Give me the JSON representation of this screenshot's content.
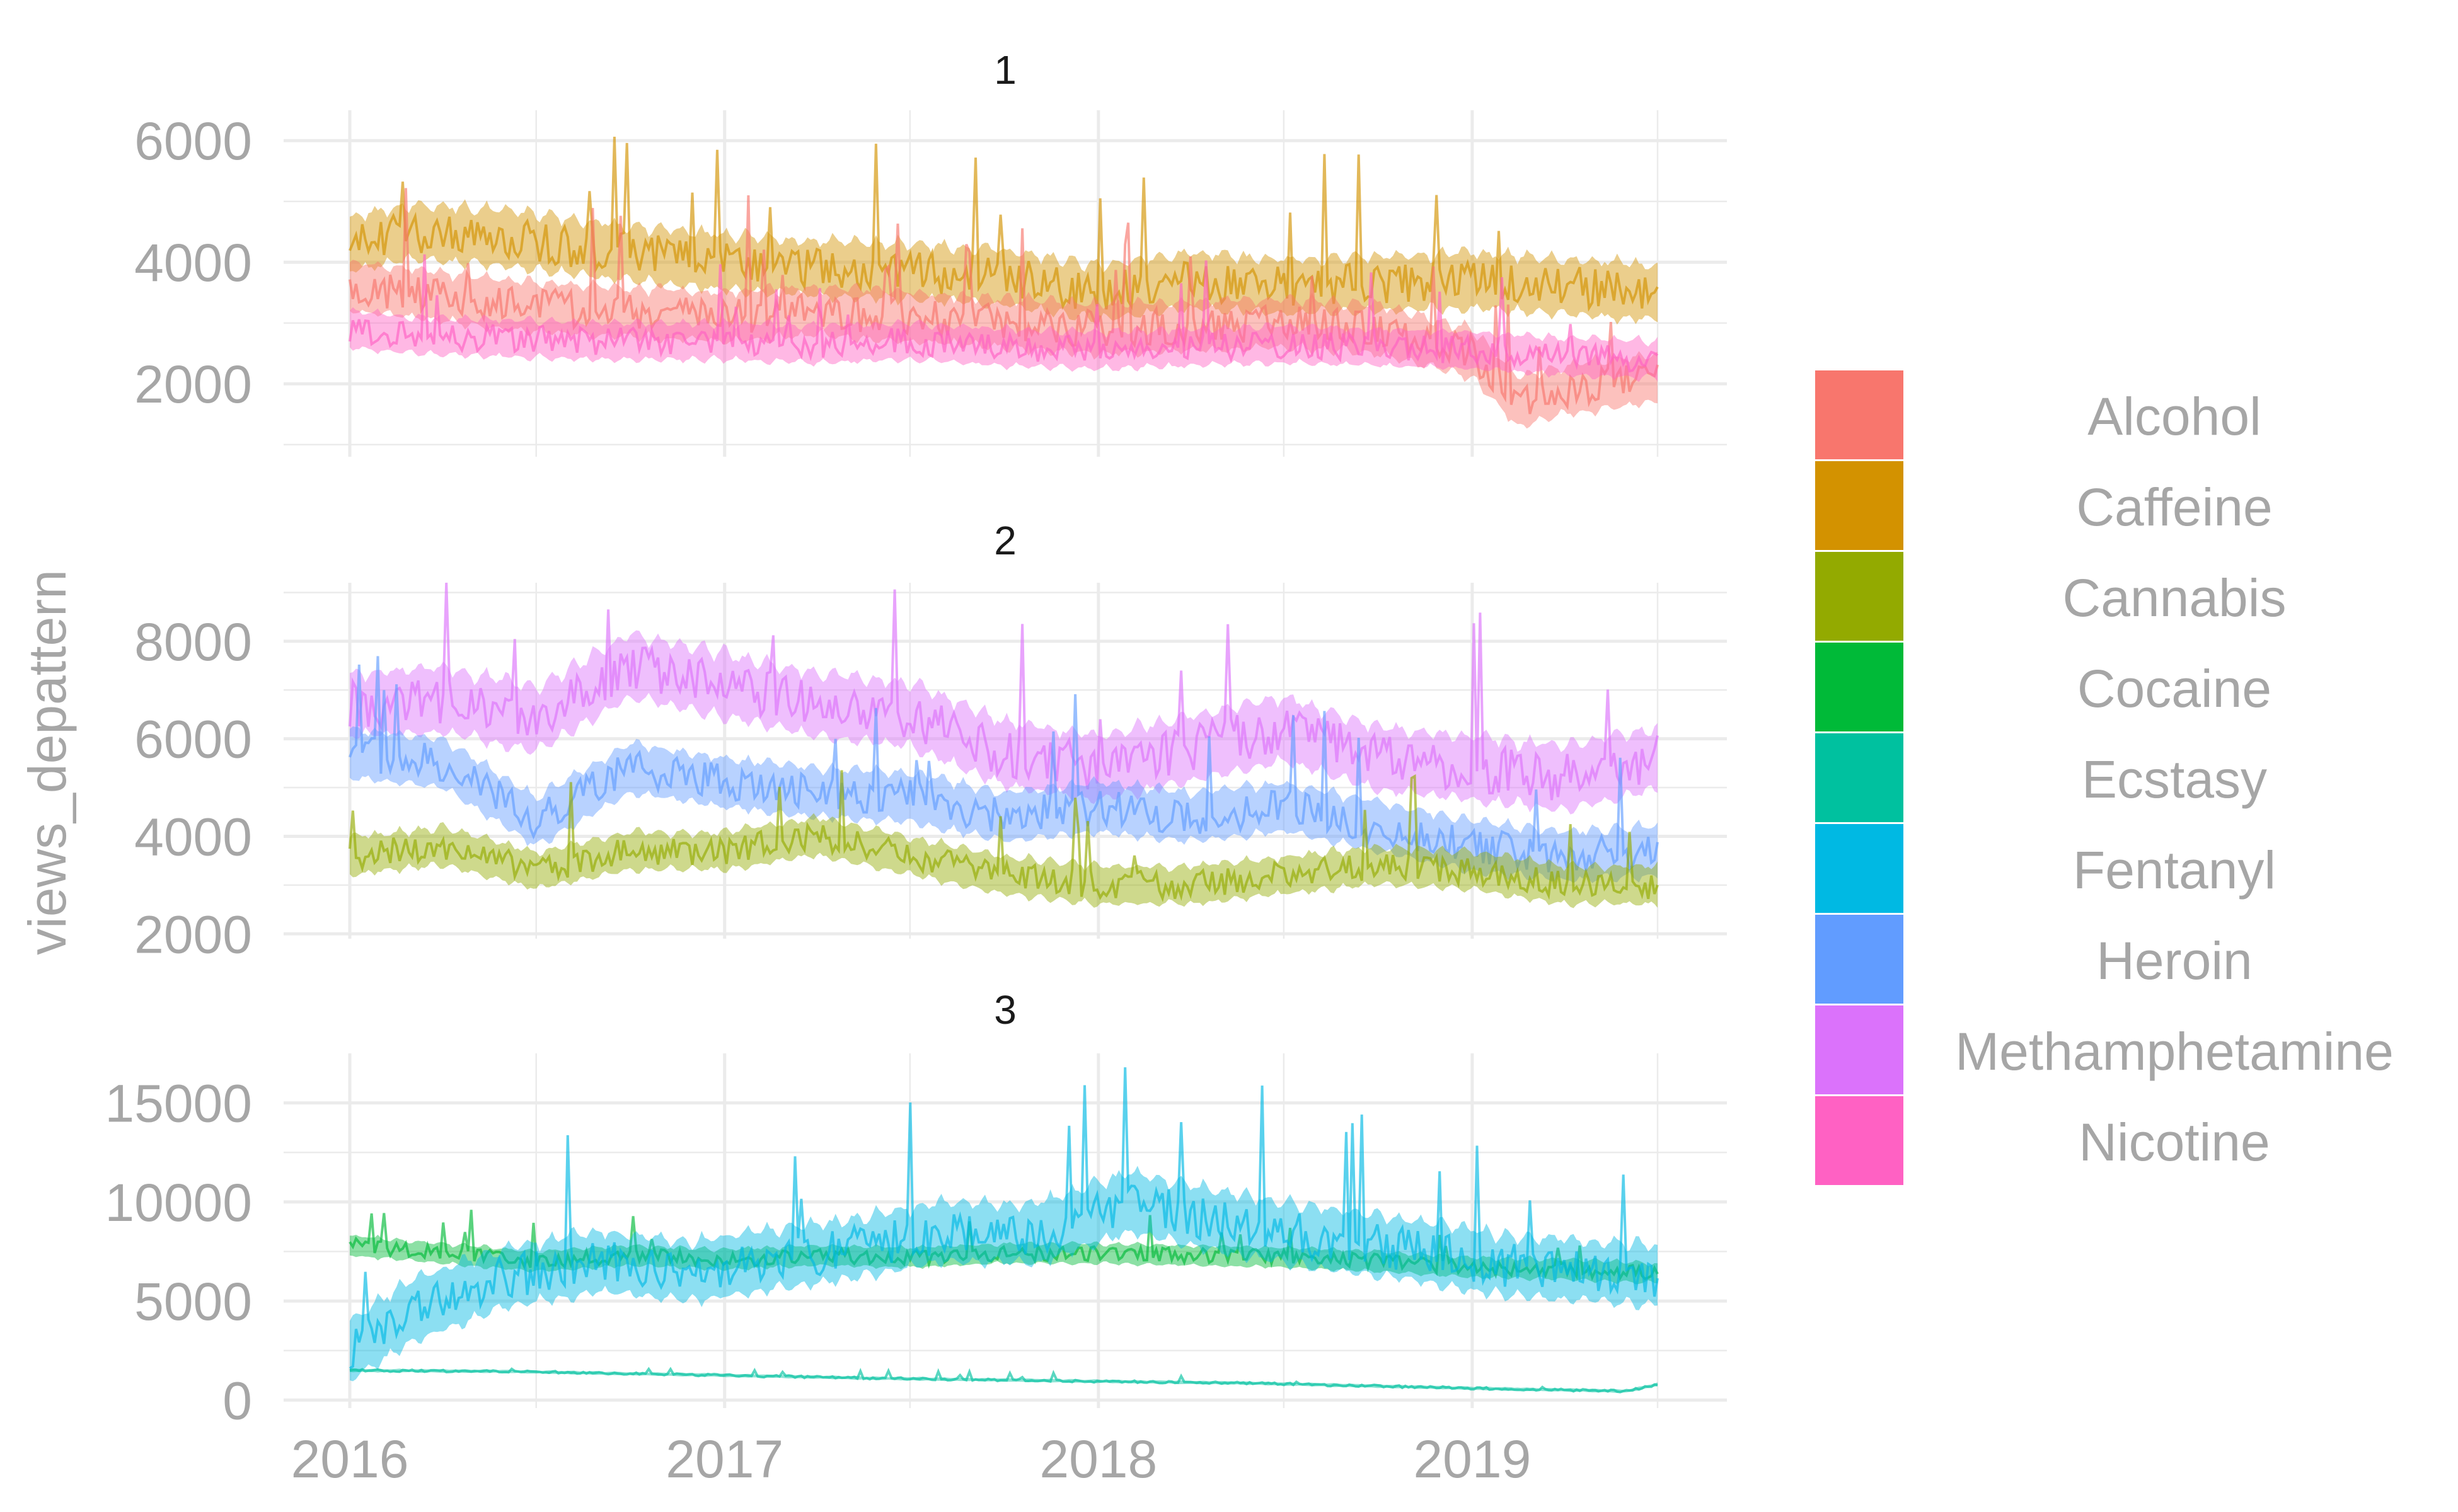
{
  "chart_data": {
    "type": "line",
    "ylabel": "views_depattern",
    "xlabel": "",
    "x_axis": {
      "range": [
        "2016-01-01",
        "2019-07-01"
      ],
      "tick_labels": [
        "2016",
        "2017",
        "2018",
        "2019"
      ]
    },
    "grid": true,
    "band_style": "each series drawn as a noisy daily line with a semi-transparent ribbon",
    "legend": {
      "placement": "right",
      "entries": [
        {
          "name": "Alcohol",
          "color": "#F8766D"
        },
        {
          "name": "Caffeine",
          "color": "#D39200"
        },
        {
          "name": "Cannabis",
          "color": "#93AA00"
        },
        {
          "name": "Cocaine",
          "color": "#00BA38"
        },
        {
          "name": "Ecstasy",
          "color": "#00C19F"
        },
        {
          "name": "Fentanyl",
          "color": "#00B9E3"
        },
        {
          "name": "Heroin",
          "color": "#619CFF"
        },
        {
          "name": "Methamphetamine",
          "color": "#DB72FB"
        },
        {
          "name": "Nicotine",
          "color": "#FF61C3"
        }
      ]
    },
    "panels": [
      {
        "label": "1",
        "ylim": [
          800,
          6500
        ],
        "y_ticks": [
          2000,
          4000,
          6000
        ],
        "y_tick_labels": [
          "2000",
          "4000",
          "6000"
        ],
        "series": [
          {
            "name": "Caffeine",
            "color": "#D39200",
            "points": [
              [
                "2016-01-01",
                4300
              ],
              [
                "2016-03-01",
                4500
              ],
              [
                "2016-06-01",
                4400
              ],
              [
                "2016-09-01",
                4200
              ],
              [
                "2017-01-01",
                4000
              ],
              [
                "2017-04-01",
                3900
              ],
              [
                "2017-07-01",
                3850
              ],
              [
                "2017-10-01",
                3750
              ],
              [
                "2018-01-01",
                3500
              ],
              [
                "2018-04-01",
                3700
              ],
              [
                "2018-07-01",
                3600
              ],
              [
                "2018-10-01",
                3650
              ],
              [
                "2019-01-01",
                3700
              ],
              [
                "2019-04-01",
                3600
              ],
              [
                "2019-07-01",
                3500
              ]
            ],
            "band": 450
          },
          {
            "name": "Alcohol",
            "color": "#F8766D",
            "points": [
              [
                "2016-01-01",
                3600
              ],
              [
                "2016-03-01",
                3500
              ],
              [
                "2016-06-01",
                3300
              ],
              [
                "2016-09-01",
                3200
              ],
              [
                "2017-01-01",
                3100
              ],
              [
                "2017-04-01",
                3200
              ],
              [
                "2017-07-01",
                3100
              ],
              [
                "2017-10-01",
                3000
              ],
              [
                "2018-01-01",
                2900
              ],
              [
                "2018-04-01",
                2950
              ],
              [
                "2018-07-01",
                3000
              ],
              [
                "2018-10-01",
                2900
              ],
              [
                "2019-01-01",
                2500
              ],
              [
                "2019-02-15",
                1700
              ],
              [
                "2019-04-01",
                1900
              ],
              [
                "2019-07-01",
                2100
              ]
            ],
            "band": 400
          },
          {
            "name": "Nicotine",
            "color": "#FF61C3",
            "points": [
              [
                "2016-01-01",
                2900
              ],
              [
                "2016-03-01",
                2800
              ],
              [
                "2016-06-01",
                2750
              ],
              [
                "2016-09-01",
                2700
              ],
              [
                "2017-01-01",
                2700
              ],
              [
                "2017-04-01",
                2650
              ],
              [
                "2017-07-01",
                2700
              ],
              [
                "2017-10-01",
                2600
              ],
              [
                "2018-01-01",
                2550
              ],
              [
                "2018-04-01",
                2600
              ],
              [
                "2018-07-01",
                2650
              ],
              [
                "2018-10-01",
                2600
              ],
              [
                "2019-01-01",
                2550
              ],
              [
                "2019-04-01",
                2450
              ],
              [
                "2019-07-01",
                2400
              ]
            ],
            "band": 300
          }
        ]
      },
      {
        "label": "2",
        "ylim": [
          1900,
          9200
        ],
        "y_ticks": [
          2000,
          4000,
          6000,
          8000
        ],
        "y_tick_labels": [
          "2000",
          "4000",
          "6000",
          "8000"
        ],
        "series": [
          {
            "name": "Methamphetamine",
            "color": "#DB72FB",
            "points": [
              [
                "2016-01-01",
                6700
              ],
              [
                "2016-04-01",
                6800
              ],
              [
                "2016-07-01",
                6400
              ],
              [
                "2016-10-01",
                7500
              ],
              [
                "2017-01-01",
                7100
              ],
              [
                "2017-04-01",
                6700
              ],
              [
                "2017-07-01",
                6500
              ],
              [
                "2017-10-01",
                5700
              ],
              [
                "2018-01-01",
                5400
              ],
              [
                "2018-04-01",
                5800
              ],
              [
                "2018-07-01",
                6200
              ],
              [
                "2018-10-01",
                5600
              ],
              [
                "2019-01-01",
                5400
              ],
              [
                "2019-04-01",
                5200
              ],
              [
                "2019-07-01",
                5600
              ]
            ],
            "band": 650
          },
          {
            "name": "Heroin",
            "color": "#619CFF",
            "points": [
              [
                "2016-01-01",
                5700
              ],
              [
                "2016-04-01",
                5500
              ],
              [
                "2016-07-01",
                4300
              ],
              [
                "2016-10-01",
                5400
              ],
              [
                "2017-01-01",
                5100
              ],
              [
                "2017-04-01",
                4900
              ],
              [
                "2017-07-01",
                4800
              ],
              [
                "2017-10-01",
                4400
              ],
              [
                "2018-01-01",
                4600
              ],
              [
                "2018-04-01",
                4400
              ],
              [
                "2018-07-01",
                4600
              ],
              [
                "2018-10-01",
                4200
              ],
              [
                "2019-01-01",
                3800
              ],
              [
                "2019-04-01",
                3600
              ],
              [
                "2019-07-01",
                3700
              ]
            ],
            "band": 500
          },
          {
            "name": "Cannabis",
            "color": "#93AA00",
            "points": [
              [
                "2016-01-01",
                3600
              ],
              [
                "2016-04-01",
                3800
              ],
              [
                "2016-07-01",
                3300
              ],
              [
                "2016-10-01",
                3700
              ],
              [
                "2017-01-01",
                3700
              ],
              [
                "2017-04-01",
                4000
              ],
              [
                "2017-07-01",
                3600
              ],
              [
                "2017-10-01",
                3200
              ],
              [
                "2018-01-01",
                3000
              ],
              [
                "2018-04-01",
                3000
              ],
              [
                "2018-07-01",
                3200
              ],
              [
                "2018-10-01",
                3400
              ],
              [
                "2019-01-01",
                3300
              ],
              [
                "2019-04-01",
                3000
              ],
              [
                "2019-07-01",
                3000
              ]
            ],
            "band": 380
          }
        ]
      },
      {
        "label": "3",
        "ylim": [
          -400,
          17500
        ],
        "y_ticks": [
          0,
          5000,
          10000,
          15000
        ],
        "y_tick_labels": [
          "0",
          "5000",
          "10000",
          "15000"
        ],
        "series": [
          {
            "name": "Cocaine",
            "color": "#00BA38",
            "points": [
              [
                "2016-01-01",
                7800
              ],
              [
                "2016-04-01",
                7400
              ],
              [
                "2016-07-01",
                7000
              ],
              [
                "2016-10-01",
                7300
              ],
              [
                "2017-01-01",
                7100
              ],
              [
                "2017-04-01",
                7300
              ],
              [
                "2017-07-01",
                7200
              ],
              [
                "2017-10-01",
                7400
              ],
              [
                "2018-01-01",
                7400
              ],
              [
                "2018-04-01",
                7300
              ],
              [
                "2018-07-01",
                7200
              ],
              [
                "2018-10-01",
                7000
              ],
              [
                "2019-01-01",
                6700
              ],
              [
                "2019-04-01",
                6600
              ],
              [
                "2019-07-01",
                6400
              ]
            ],
            "band": 500
          },
          {
            "name": "Fentanyl",
            "color": "#00B9E3",
            "points": [
              [
                "2016-01-01",
                2500
              ],
              [
                "2016-03-01",
                4500
              ],
              [
                "2016-06-01",
                6200
              ],
              [
                "2016-09-01",
                7000
              ],
              [
                "2016-12-01",
                6500
              ],
              [
                "2017-02-01",
                7000
              ],
              [
                "2017-05-01",
                7600
              ],
              [
                "2017-08-01",
                8500
              ],
              [
                "2017-11-01",
                8400
              ],
              [
                "2018-02-01",
                10000
              ],
              [
                "2018-05-01",
                9000
              ],
              [
                "2018-08-01",
                8200
              ],
              [
                "2018-11-01",
                7600
              ],
              [
                "2019-02-01",
                6800
              ],
              [
                "2019-07-01",
                6300
              ]
            ],
            "band": 1500
          },
          {
            "name": "Ecstasy",
            "color": "#00C19F",
            "points": [
              [
                "2016-01-01",
                1500
              ],
              [
                "2016-06-01",
                1450
              ],
              [
                "2017-01-01",
                1250
              ],
              [
                "2017-06-01",
                1100
              ],
              [
                "2018-01-01",
                950
              ],
              [
                "2018-06-01",
                850
              ],
              [
                "2019-01-01",
                600
              ],
              [
                "2019-06-01",
                450
              ],
              [
                "2019-07-01",
                800
              ]
            ],
            "band": 80
          }
        ]
      }
    ]
  }
}
